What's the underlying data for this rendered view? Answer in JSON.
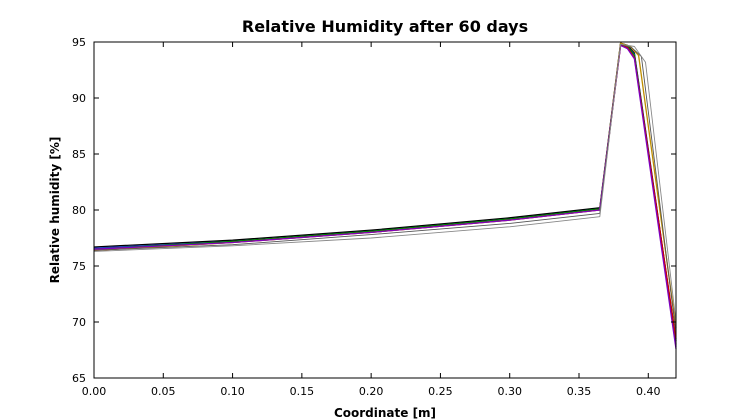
{
  "chart_data": {
    "type": "line",
    "title": "Relative Humidity after 60 days",
    "xlabel": "Coordinate [m]",
    "ylabel": "Relative humidity [%]",
    "xlim": [
      0.0,
      0.42
    ],
    "ylim": [
      65,
      95
    ],
    "x_ticks": [
      "0.00",
      "0.05",
      "0.10",
      "0.15",
      "0.20",
      "0.25",
      "0.30",
      "0.35",
      "0.40"
    ],
    "y_ticks": [
      "65",
      "70",
      "75",
      "80",
      "85",
      "90",
      "95"
    ],
    "grid": false,
    "legend": "none",
    "series": [
      {
        "color": "#000000",
        "points": [
          [
            0.0,
            76.7
          ],
          [
            0.1,
            77.3
          ],
          [
            0.2,
            78.2
          ],
          [
            0.3,
            79.3
          ],
          [
            0.365,
            80.2
          ],
          [
            0.38,
            94.9
          ],
          [
            0.385,
            94.7
          ],
          [
            0.39,
            94.0
          ],
          [
            0.42,
            68.3
          ]
        ]
      },
      {
        "color": "#1f3fbf",
        "points": [
          [
            0.0,
            76.6
          ],
          [
            0.1,
            77.2
          ],
          [
            0.2,
            78.1
          ],
          [
            0.3,
            79.2
          ],
          [
            0.365,
            80.1
          ],
          [
            0.38,
            94.8
          ],
          [
            0.385,
            94.6
          ],
          [
            0.39,
            93.9
          ],
          [
            0.42,
            67.8
          ]
        ]
      },
      {
        "color": "#008000",
        "points": [
          [
            0.0,
            76.5
          ],
          [
            0.1,
            77.2
          ],
          [
            0.2,
            78.1
          ],
          [
            0.3,
            79.2
          ],
          [
            0.365,
            80.1
          ],
          [
            0.38,
            94.8
          ],
          [
            0.385,
            94.6
          ],
          [
            0.39,
            93.8
          ],
          [
            0.42,
            68.0
          ]
        ]
      },
      {
        "color": "#cc0000",
        "points": [
          [
            0.0,
            76.4
          ],
          [
            0.1,
            77.1
          ],
          [
            0.2,
            78.0
          ],
          [
            0.3,
            79.1
          ],
          [
            0.365,
            80.0
          ],
          [
            0.38,
            94.7
          ],
          [
            0.385,
            94.5
          ],
          [
            0.39,
            93.6
          ],
          [
            0.42,
            68.5
          ]
        ]
      },
      {
        "color": "#bf8f00",
        "points": [
          [
            0.0,
            76.4
          ],
          [
            0.1,
            77.1
          ],
          [
            0.2,
            78.0
          ],
          [
            0.3,
            79.1
          ],
          [
            0.365,
            80.0
          ],
          [
            0.38,
            94.9
          ],
          [
            0.387,
            94.6
          ],
          [
            0.393,
            93.8
          ],
          [
            0.42,
            69.5
          ]
        ]
      },
      {
        "color": "#7f00bf",
        "points": [
          [
            0.0,
            76.5
          ],
          [
            0.1,
            77.1
          ],
          [
            0.2,
            78.0
          ],
          [
            0.3,
            79.1
          ],
          [
            0.365,
            80.0
          ],
          [
            0.38,
            94.7
          ],
          [
            0.385,
            94.4
          ],
          [
            0.39,
            93.5
          ],
          [
            0.42,
            67.6
          ]
        ]
      },
      {
        "color": "#555555",
        "points": [
          [
            0.0,
            76.4
          ],
          [
            0.1,
            76.9
          ],
          [
            0.2,
            77.8
          ],
          [
            0.3,
            78.8
          ],
          [
            0.365,
            79.7
          ],
          [
            0.38,
            94.8
          ],
          [
            0.388,
            94.5
          ],
          [
            0.395,
            93.7
          ],
          [
            0.42,
            69.0
          ]
        ]
      },
      {
        "color": "#888888",
        "points": [
          [
            0.0,
            76.3
          ],
          [
            0.1,
            76.8
          ],
          [
            0.2,
            77.5
          ],
          [
            0.3,
            78.5
          ],
          [
            0.365,
            79.4
          ],
          [
            0.38,
            94.8
          ],
          [
            0.39,
            94.6
          ],
          [
            0.398,
            93.2
          ],
          [
            0.42,
            70.0
          ]
        ]
      }
    ]
  }
}
